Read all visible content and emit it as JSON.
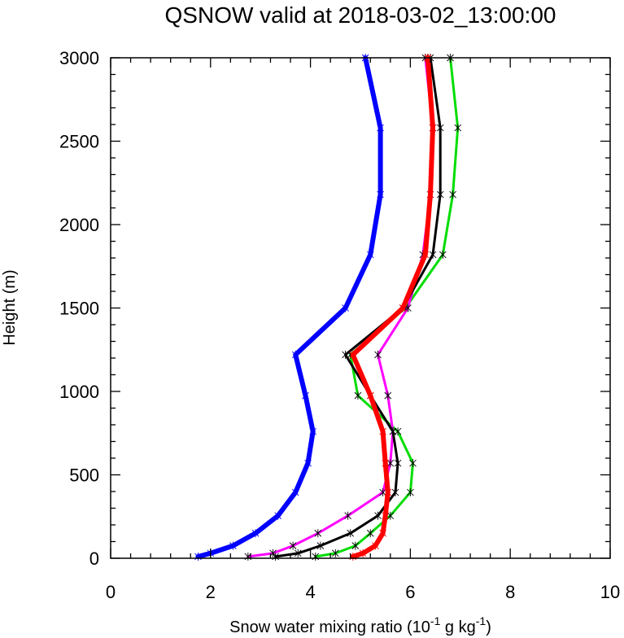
{
  "chart_data": {
    "type": "line",
    "title": "QSNOW valid at 2018-03-02_13:00:00",
    "xlabel": "Snow water mixing ratio (10",
    "xlabel_sup1": "-1",
    "xlabel_mid": " g kg",
    "xlabel_sup2": "-1",
    "xlabel_end": ")",
    "ylabel": "Height (m)",
    "xlim": [
      0,
      10
    ],
    "ylim": [
      0,
      3000
    ],
    "x_ticks": [
      "0",
      "2",
      "4",
      "6",
      "8",
      "10"
    ],
    "y_ticks": [
      "0",
      "500",
      "1000",
      "1500",
      "2000",
      "2500",
      "3000"
    ],
    "grid": false,
    "series": [
      {
        "color": "#0000ff",
        "width": 6,
        "marker": false,
        "x": [
          1.75,
          2.0,
          2.45,
          2.9,
          3.35,
          3.7,
          3.95,
          4.05,
          3.9,
          3.7,
          4.7,
          5.2,
          5.4,
          5.4,
          5.1
        ],
        "y": [
          10,
          30,
          75,
          150,
          255,
          395,
          570,
          760,
          975,
          1220,
          1500,
          1820,
          2180,
          2580,
          3000
        ]
      },
      {
        "color": "#00dd00",
        "width": 3,
        "marker": true,
        "x": [
          4.1,
          4.5,
          4.9,
          5.2,
          5.6,
          6.0,
          6.05,
          5.75,
          4.95,
          4.8,
          5.9,
          6.65,
          6.85,
          6.95,
          6.8
        ],
        "y": [
          10,
          30,
          75,
          150,
          255,
          395,
          570,
          760,
          975,
          1220,
          1500,
          1820,
          2180,
          2580,
          3000
        ]
      },
      {
        "color": "#ff00ff",
        "width": 3,
        "marker": true,
        "x": [
          2.75,
          3.25,
          3.65,
          4.15,
          4.75,
          5.45,
          5.6,
          5.65,
          5.55,
          5.35,
          5.95,
          6.25,
          6.4,
          6.45,
          6.3
        ],
        "y": [
          10,
          30,
          75,
          150,
          255,
          395,
          570,
          760,
          975,
          1220,
          1500,
          1820,
          2180,
          2580,
          3000
        ]
      },
      {
        "color": "#000000",
        "width": 3,
        "marker": true,
        "x": [
          3.3,
          3.75,
          4.2,
          4.8,
          5.35,
          5.7,
          5.75,
          5.65,
          5.2,
          4.7,
          5.85,
          6.45,
          6.6,
          6.6,
          6.4
        ],
        "y": [
          10,
          30,
          75,
          150,
          255,
          395,
          570,
          760,
          975,
          1220,
          1500,
          1820,
          2180,
          2580,
          3000
        ]
      },
      {
        "color": "#ff0000",
        "width": 6,
        "marker": false,
        "x": [
          4.85,
          5.05,
          5.3,
          5.45,
          5.5,
          5.55,
          5.5,
          5.45,
          5.2,
          4.85,
          5.85,
          6.3,
          6.4,
          6.45,
          6.35
        ],
        "y": [
          10,
          30,
          75,
          150,
          255,
          395,
          570,
          760,
          975,
          1220,
          1500,
          1820,
          2180,
          2580,
          3000
        ]
      }
    ]
  }
}
